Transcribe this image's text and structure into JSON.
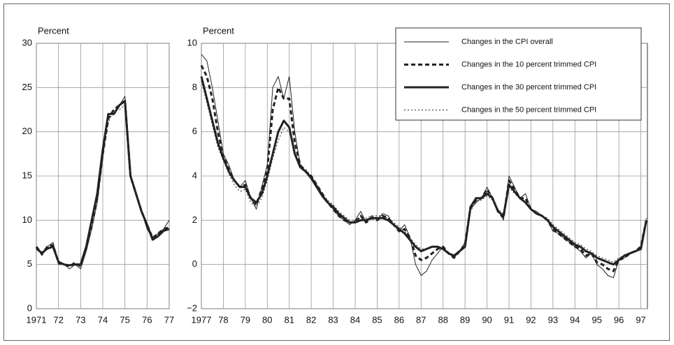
{
  "chart_data": [
    {
      "type": "line",
      "ylabel": "Percent",
      "x": [
        1971,
        1971.25,
        1971.5,
        1971.75,
        1972,
        1972.25,
        1972.5,
        1972.75,
        1973,
        1973.25,
        1973.5,
        1973.75,
        1974,
        1974.25,
        1974.5,
        1974.75,
        1975,
        1975.25,
        1975.5,
        1975.75,
        1976,
        1976.25,
        1976.5,
        1976.75,
        1977
      ],
      "series": [
        {
          "color": "#222222",
          "width": 3,
          "dash": "none",
          "values": [
            6.8,
            6.3,
            6.8,
            7,
            5.3,
            5,
            4.9,
            5,
            5,
            7,
            10,
            13,
            18,
            22,
            22,
            23,
            23.5,
            15,
            13,
            11,
            9.5,
            7.8,
            8.2,
            8.8,
            9
          ]
        },
        {
          "color": "#222222",
          "width": 3,
          "dash": "6,4",
          "values": [
            7,
            6.2,
            7,
            7.2,
            5.2,
            5,
            4.8,
            5.2,
            4.8,
            6.8,
            9.5,
            12.5,
            17.5,
            21.5,
            22.5,
            23,
            23.5,
            15,
            13,
            11,
            9.5,
            8,
            8.5,
            9,
            9.2
          ]
        },
        {
          "color": "#222222",
          "width": 1,
          "dash": "none",
          "values": [
            7,
            6,
            7,
            7.5,
            5,
            5,
            4.5,
            5,
            4.5,
            6.5,
            9,
            12,
            17,
            22,
            22,
            23,
            24,
            15,
            13,
            11,
            9,
            8,
            8.5,
            9,
            10
          ]
        },
        {
          "color": "#222222",
          "width": 1,
          "dash": "2,3",
          "values": [
            6.9,
            6.2,
            6.9,
            7,
            5.2,
            5.1,
            4.8,
            5.1,
            5,
            6.8,
            9.8,
            12.8,
            17.5,
            21,
            22.5,
            22.5,
            23,
            15.2,
            13.2,
            11.2,
            9.6,
            8,
            8.4,
            9,
            9.2
          ]
        }
      ],
      "xlim": [
        1971,
        1977
      ],
      "xticks": [
        {
          "value": 1971,
          "label": "1971"
        },
        {
          "value": 1972,
          "label": "72"
        },
        {
          "value": 1973,
          "label": "73"
        },
        {
          "value": 1974,
          "label": "74"
        },
        {
          "value": 1975,
          "label": "75"
        },
        {
          "value": 1976,
          "label": "76"
        },
        {
          "value": 1977,
          "label": "77"
        }
      ],
      "ylim": [
        0,
        30
      ],
      "yticks": [
        0,
        5,
        10,
        15,
        20,
        25,
        30
      ],
      "grid": true,
      "legend": false
    },
    {
      "type": "line",
      "ylabel": "Percent",
      "x": [
        1977,
        1977.25,
        1977.5,
        1977.75,
        1978,
        1978.25,
        1978.5,
        1978.75,
        1979,
        1979.25,
        1979.5,
        1979.75,
        1980,
        1980.25,
        1980.5,
        1980.75,
        1981,
        1981.25,
        1981.5,
        1981.75,
        1982,
        1982.25,
        1982.5,
        1982.75,
        1983,
        1983.25,
        1983.5,
        1983.75,
        1984,
        1984.25,
        1984.5,
        1984.75,
        1985,
        1985.25,
        1985.5,
        1985.75,
        1986,
        1986.25,
        1986.5,
        1986.75,
        1987,
        1987.25,
        1987.5,
        1987.75,
        1988,
        1988.25,
        1988.5,
        1988.75,
        1989,
        1989.25,
        1989.5,
        1989.75,
        1990,
        1990.25,
        1990.5,
        1990.75,
        1991,
        1991.25,
        1991.5,
        1991.75,
        1992,
        1992.25,
        1992.5,
        1992.75,
        1993,
        1993.25,
        1993.5,
        1993.75,
        1994,
        1994.25,
        1994.5,
        1994.75,
        1995,
        1995.25,
        1995.5,
        1995.75,
        1996,
        1996.25,
        1996.5,
        1996.75,
        1997,
        1997.25
      ],
      "series": [
        {
          "name": "Changes in the 30 percent trimmed CPI",
          "color": "#222222",
          "width": 3,
          "dash": "none",
          "values": [
            8.5,
            7.5,
            6.5,
            5.5,
            4.8,
            4.2,
            3.8,
            3.5,
            3.5,
            3.0,
            2.8,
            3.2,
            4.0,
            5.0,
            6.0,
            6.5,
            6.2,
            5.0,
            4.4,
            4.2,
            3.9,
            3.5,
            3.1,
            2.8,
            2.6,
            2.3,
            2.1,
            1.9,
            1.9,
            2.0,
            2.0,
            2.1,
            2.1,
            2.1,
            2.0,
            1.8,
            1.6,
            1.4,
            1.1,
            0.8,
            0.6,
            0.7,
            0.8,
            0.8,
            0.7,
            0.5,
            0.4,
            0.6,
            0.8,
            2.6,
            3.0,
            3.0,
            3.2,
            3.0,
            2.4,
            2.2,
            3.6,
            3.3,
            3.0,
            2.8,
            2.5,
            2.3,
            2.2,
            2.0,
            1.7,
            1.5,
            1.3,
            1.1,
            0.9,
            0.8,
            0.6,
            0.5,
            0.3,
            0.2,
            0.1,
            0.0,
            0.2,
            0.4,
            0.5,
            0.6,
            0.7,
            2.0
          ]
        },
        {
          "name": "Changes in the 10 percent trimmed CPI",
          "color": "#222222",
          "width": 3,
          "dash": "6,4",
          "values": [
            9.0,
            8.5,
            7.5,
            6.0,
            4.9,
            4.3,
            3.8,
            3.5,
            3.6,
            3.0,
            2.7,
            3.4,
            4.3,
            7.0,
            8.0,
            7.5,
            7.5,
            5.5,
            4.5,
            4.2,
            4.0,
            3.6,
            3.2,
            2.8,
            2.5,
            2.2,
            2.0,
            1.9,
            1.9,
            2.2,
            1.9,
            2.1,
            2.0,
            2.2,
            2.1,
            1.8,
            1.5,
            1.6,
            1.2,
            0.4,
            0.2,
            0.3,
            0.5,
            0.7,
            0.8,
            0.5,
            0.3,
            0.6,
            0.9,
            2.6,
            2.9,
            3.0,
            3.4,
            3.0,
            2.4,
            2.1,
            3.8,
            3.4,
            3.0,
            3.0,
            2.5,
            2.3,
            2.2,
            2.0,
            1.6,
            1.4,
            1.2,
            1.0,
            0.8,
            0.7,
            0.4,
            0.5,
            0.1,
            0.0,
            -0.2,
            -0.3,
            0.2,
            0.3,
            0.5,
            0.6,
            0.8,
            2.0
          ]
        },
        {
          "name": "Changes in the CPI overall",
          "color": "#222222",
          "width": 1,
          "dash": "none",
          "values": [
            9.5,
            9.2,
            8,
            6.5,
            5,
            4.5,
            3.8,
            3.5,
            3.8,
            3,
            2.5,
            3.5,
            4.5,
            8,
            8.5,
            7.5,
            8.5,
            6,
            4.5,
            4.2,
            4,
            3.6,
            3.2,
            2.8,
            2.5,
            2.2,
            2.0,
            1.8,
            2.0,
            2.4,
            1.9,
            2.2,
            2.0,
            2.3,
            2.2,
            1.8,
            1.5,
            1.8,
            1.2,
            0.0,
            -0.5,
            -0.3,
            0.2,
            0.5,
            0.8,
            0.5,
            0.3,
            0.6,
            1.0,
            2.5,
            2.8,
            3.0,
            3.5,
            3.0,
            2.5,
            2.0,
            4.0,
            3.5,
            3.0,
            3.2,
            2.5,
            2.4,
            2.2,
            2.0,
            1.5,
            1.4,
            1.2,
            1.0,
            0.8,
            0.6,
            0.3,
            0.5,
            0.0,
            -0.2,
            -0.5,
            -0.6,
            0.2,
            0.3,
            0.5,
            0.6,
            0.8,
            2.0
          ]
        },
        {
          "name": "Changes in the 50 percent trimmed CPI",
          "color": "#222222",
          "width": 1,
          "dash": "2,3",
          "values": [
            8.3,
            7.3,
            6.3,
            5.3,
            4.7,
            4.1,
            3.6,
            3.3,
            3.4,
            2.8,
            2.6,
            3.0,
            3.8,
            4.8,
            5.6,
            6.2,
            6.0,
            5.0,
            4.5,
            4.3,
            4.0,
            3.6,
            3.2,
            2.9,
            2.7,
            2.4,
            2.2,
            2.0,
            2.0,
            2.1,
            2.1,
            2.2,
            2.2,
            2.2,
            2.1,
            1.9,
            1.7,
            1.5,
            1.2,
            0.9,
            0.7,
            0.7,
            0.8,
            0.8,
            0.7,
            0.5,
            0.4,
            0.6,
            0.8,
            2.4,
            2.9,
            2.9,
            3.1,
            2.9,
            2.5,
            2.3,
            3.5,
            3.2,
            3.0,
            2.8,
            2.5,
            2.4,
            2.2,
            2.1,
            1.8,
            1.6,
            1.4,
            1.2,
            1.0,
            0.9,
            0.7,
            0.6,
            0.4,
            0.3,
            0.2,
            0.1,
            0.3,
            0.4,
            0.5,
            0.6,
            0.7,
            2.1
          ]
        }
      ],
      "legend_order": [
        2,
        1,
        0,
        3
      ],
      "xlim": [
        1977,
        1997.3
      ],
      "xticks": [
        {
          "value": 1977,
          "label": "1977"
        },
        {
          "value": 1978,
          "label": "78"
        },
        {
          "value": 1979,
          "label": "79"
        },
        {
          "value": 1980,
          "label": "80"
        },
        {
          "value": 1981,
          "label": "81"
        },
        {
          "value": 1982,
          "label": "82"
        },
        {
          "value": 1983,
          "label": "83"
        },
        {
          "value": 1984,
          "label": "84"
        },
        {
          "value": 1985,
          "label": "85"
        },
        {
          "value": 1986,
          "label": "86"
        },
        {
          "value": 1987,
          "label": "87"
        },
        {
          "value": 1988,
          "label": "88"
        },
        {
          "value": 1989,
          "label": "89"
        },
        {
          "value": 1990,
          "label": "90"
        },
        {
          "value": 1991,
          "label": "91"
        },
        {
          "value": 1992,
          "label": "92"
        },
        {
          "value": 1993,
          "label": "93"
        },
        {
          "value": 1994,
          "label": "94"
        },
        {
          "value": 1995,
          "label": "95"
        },
        {
          "value": 1996,
          "label": "96"
        },
        {
          "value": 1997,
          "label": "97"
        }
      ],
      "ylim": [
        -2,
        10
      ],
      "yticks": [
        {
          "value": -2,
          "label": "−2"
        },
        0,
        2,
        4,
        6,
        8,
        10
      ],
      "grid": true,
      "legend": true
    }
  ]
}
